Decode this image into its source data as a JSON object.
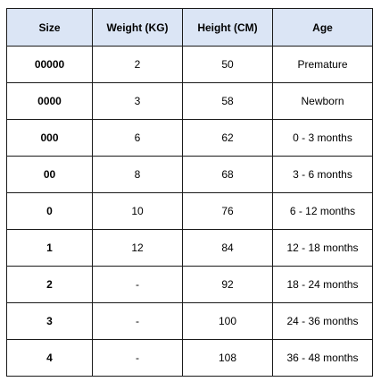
{
  "table": {
    "headers": [
      "Size",
      "Weight (KG)",
      "Height (CM)",
      "Age"
    ],
    "header_bg": "#dbe5f5",
    "rows": [
      {
        "size": "00000",
        "weight": "2",
        "height": "50",
        "age": "Premature"
      },
      {
        "size": "0000",
        "weight": "3",
        "height": "58",
        "age": "Newborn"
      },
      {
        "size": "000",
        "weight": "6",
        "height": "62",
        "age": "0 - 3 months"
      },
      {
        "size": "00",
        "weight": "8",
        "height": "68",
        "age": "3 - 6 months"
      },
      {
        "size": "0",
        "weight": "10",
        "height": "76",
        "age": "6 - 12 months"
      },
      {
        "size": "1",
        "weight": "12",
        "height": "84",
        "age": "12 - 18 months"
      },
      {
        "size": "2",
        "weight": "-",
        "height": "92",
        "age": "18 - 24 months"
      },
      {
        "size": "3",
        "weight": "-",
        "height": "100",
        "age": "24 - 36 months"
      },
      {
        "size": "4",
        "weight": "-",
        "height": "108",
        "age": "36 - 48 months"
      }
    ]
  }
}
